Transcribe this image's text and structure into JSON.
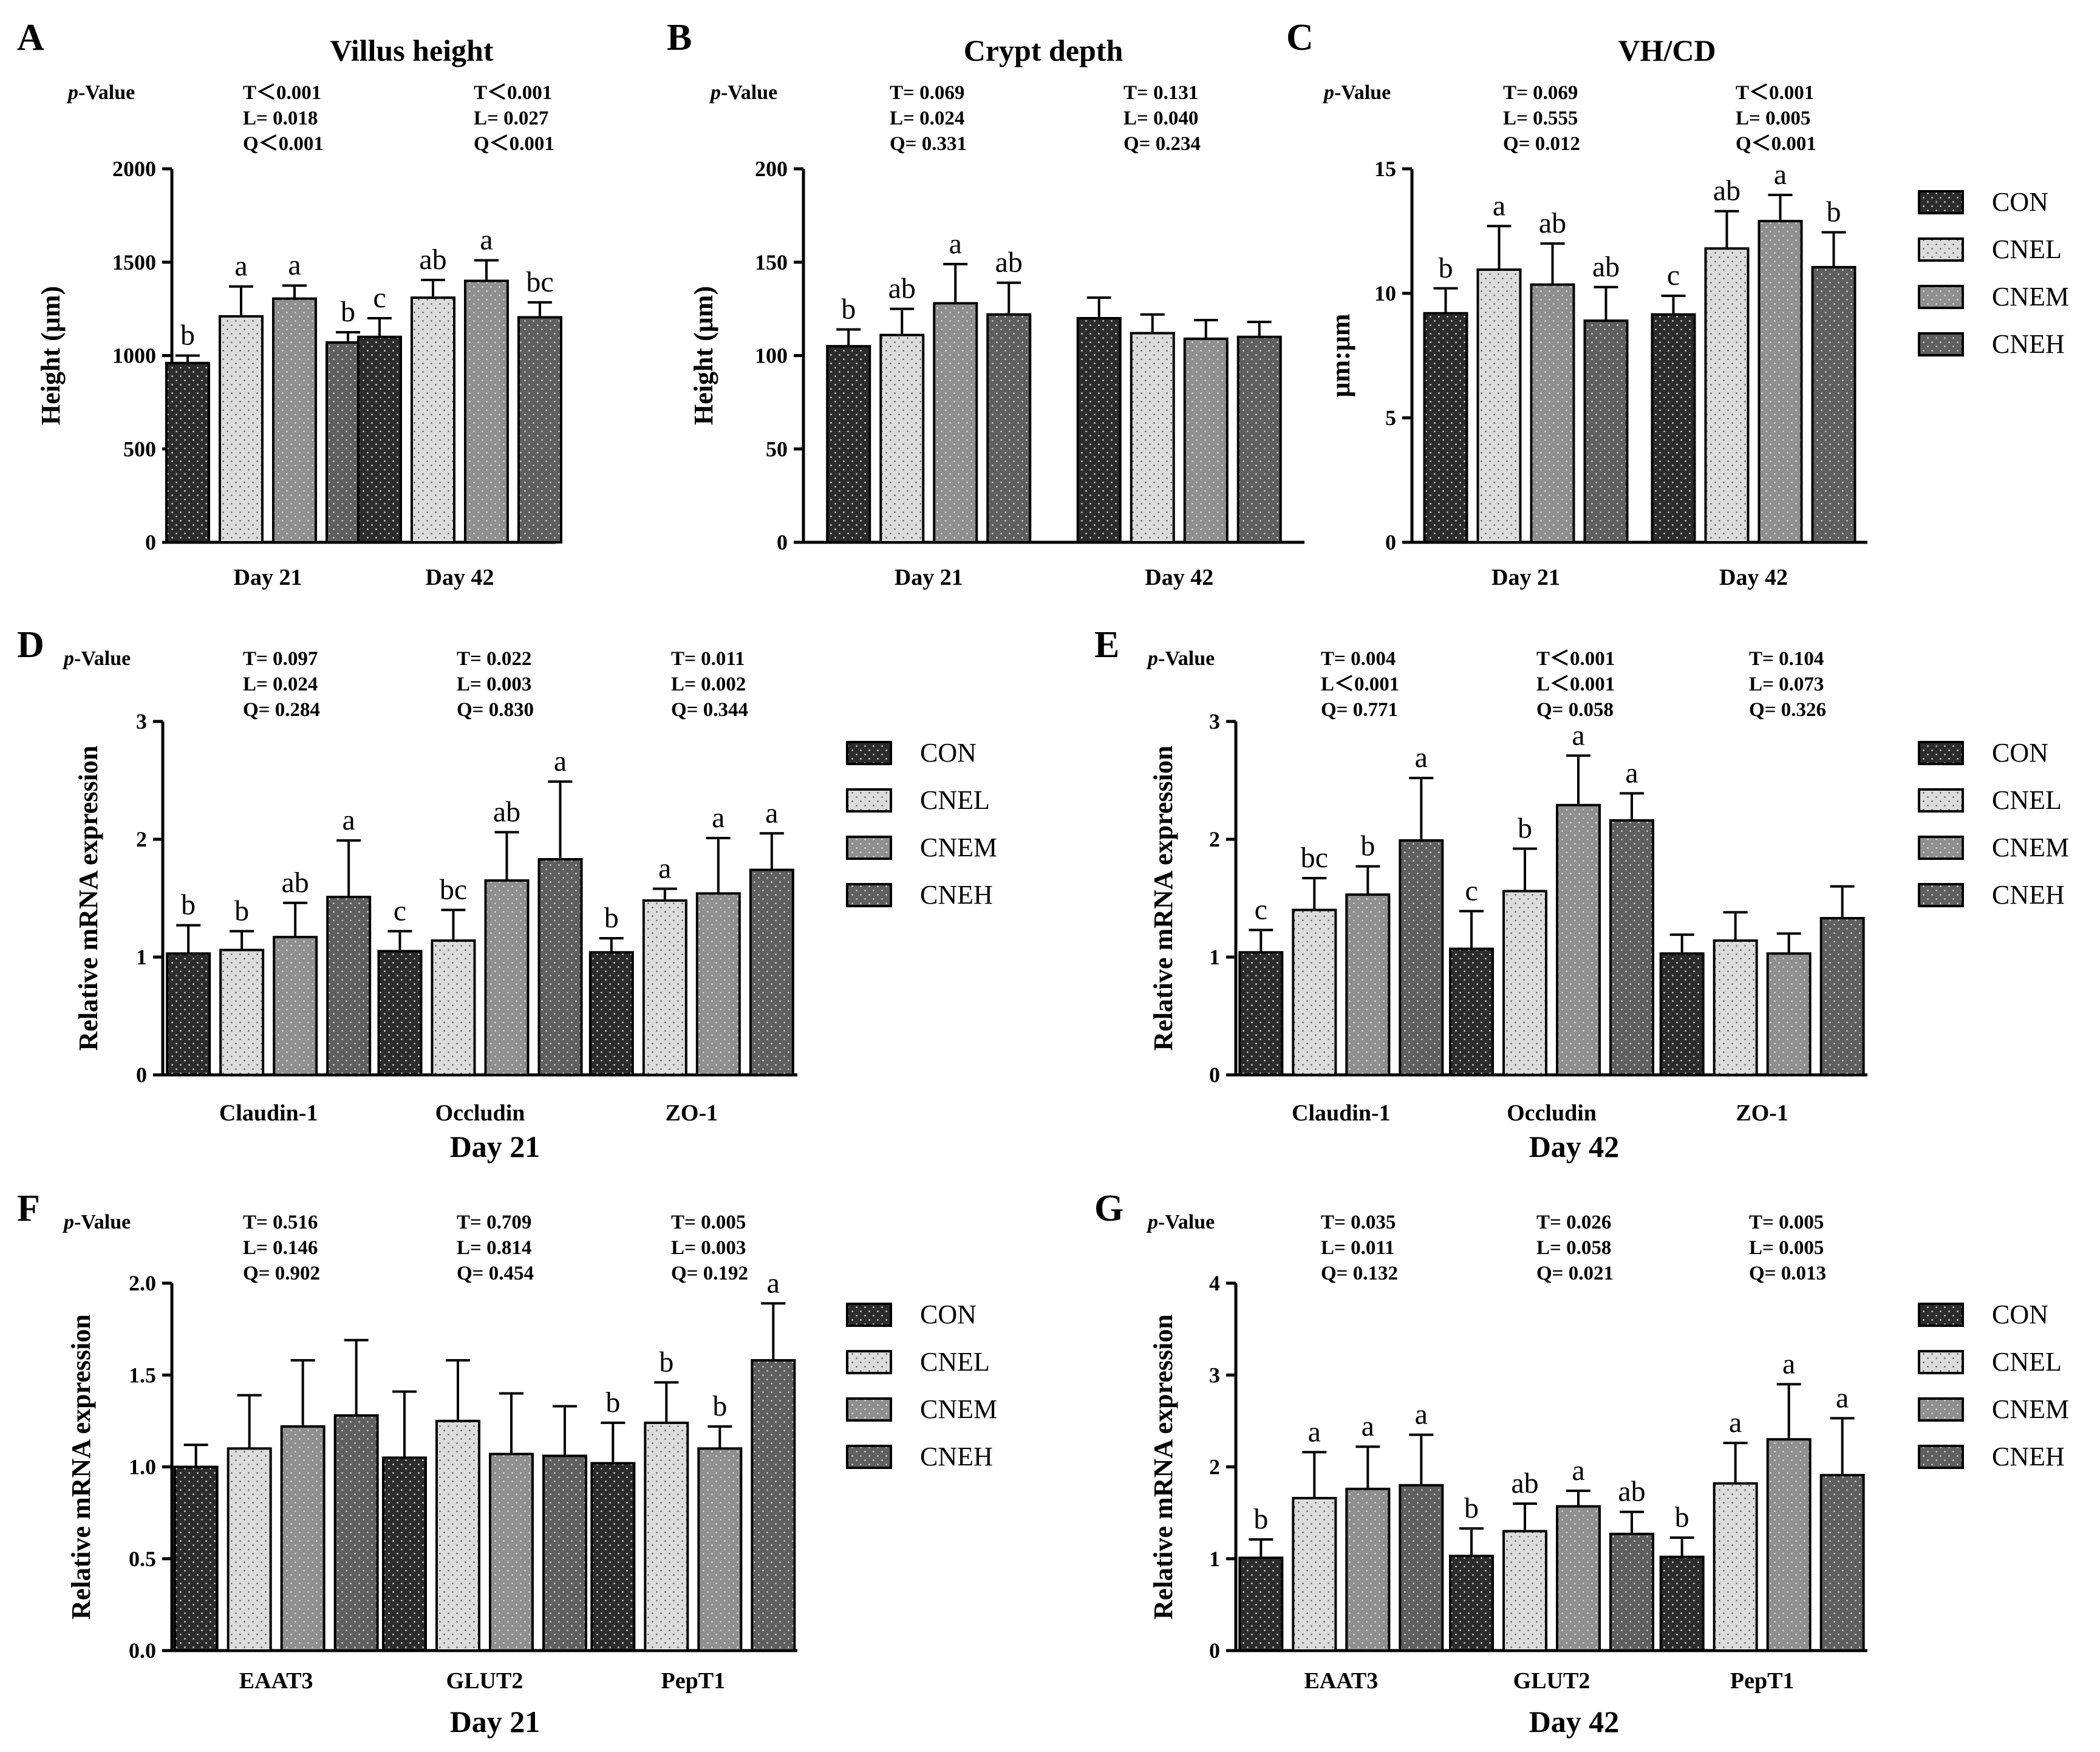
{
  "legend_labels": [
    "CON",
    "CNEL",
    "CNEM",
    "CNEH"
  ],
  "group_colors": [
    "#2c2c2c",
    "#dcdcdc",
    "#8f8f8f",
    "#5f5f5f"
  ],
  "p_value_label": "p-Value",
  "chart_data": [
    {
      "id": "A",
      "type": "bar",
      "title": "Villus height",
      "ylabel": "Height (μm)",
      "ylim": [
        0,
        2000
      ],
      "yticks": [
        "0",
        "500",
        "1000",
        "1500",
        "2000"
      ],
      "categories": [
        "Day 21",
        "Day 42"
      ],
      "series_names": [
        "CON",
        "CNEL",
        "CNEM",
        "CNEH"
      ],
      "values": [
        [
          960,
          1210,
          1305,
          1070
        ],
        [
          1100,
          1310,
          1400,
          1205
        ]
      ],
      "errors": [
        [
          40,
          160,
          70,
          55
        ],
        [
          100,
          95,
          110,
          80
        ]
      ],
      "letters": [
        [
          "b",
          "a",
          "a",
          "b"
        ],
        [
          "c",
          "ab",
          "a",
          "bc"
        ]
      ],
      "pvalues": [
        [
          "T＜0.001",
          "L= 0.018",
          "Q＜0.001"
        ],
        [
          "T＜0.001",
          "L= 0.027",
          "Q＜0.001"
        ]
      ],
      "group_label": "",
      "show_legend": false
    },
    {
      "id": "B",
      "type": "bar",
      "title": "Crypt depth",
      "ylabel": "Height (μm)",
      "ylim": [
        0,
        200
      ],
      "yticks": [
        "0",
        "50",
        "100",
        "150",
        "200"
      ],
      "categories": [
        "Day 21",
        "Day 42"
      ],
      "series_names": [
        "CON",
        "CNEL",
        "CNEM",
        "CNEH"
      ],
      "values": [
        [
          105,
          111,
          128,
          122
        ],
        [
          120,
          112,
          109,
          110
        ]
      ],
      "errors": [
        [
          9,
          14,
          21,
          17
        ],
        [
          11,
          10,
          10,
          8
        ]
      ],
      "letters": [
        [
          "b",
          "ab",
          "a",
          "ab"
        ],
        [
          "",
          "",
          "",
          ""
        ]
      ],
      "pvalues": [
        [
          "T= 0.069",
          "L= 0.024",
          "Q= 0.331"
        ],
        [
          "T= 0.131",
          "L= 0.040",
          "Q= 0.234"
        ]
      ],
      "group_label": "",
      "show_legend": false
    },
    {
      "id": "C",
      "type": "bar",
      "title": "VH/CD",
      "ylabel": "μm:μm",
      "ylim": [
        0,
        15
      ],
      "yticks": [
        "0",
        "5",
        "10",
        "15"
      ],
      "categories": [
        "Day 21",
        "Day 42"
      ],
      "series_names": [
        "CON",
        "CNEL",
        "CNEM",
        "CNEH"
      ],
      "values": [
        [
          9.2,
          10.95,
          10.35,
          8.9
        ],
        [
          9.15,
          11.8,
          12.9,
          11.05
        ]
      ],
      "errors": [
        [
          1.0,
          1.75,
          1.65,
          1.35
        ],
        [
          0.75,
          1.5,
          1.05,
          1.4
        ]
      ],
      "letters": [
        [
          "b",
          "a",
          "ab",
          "ab"
        ],
        [
          "c",
          "ab",
          "a",
          "b"
        ]
      ],
      "pvalues": [
        [
          "T= 0.069",
          "L= 0.555",
          "Q= 0.012"
        ],
        [
          "T＜0.001",
          "L= 0.005",
          "Q＜0.001"
        ]
      ],
      "group_label": "",
      "show_legend": true
    },
    {
      "id": "D",
      "type": "bar",
      "title": "",
      "ylabel": "Relative mRNA expression",
      "ylim": [
        0,
        3
      ],
      "yticks": [
        "0",
        "1",
        "2",
        "3"
      ],
      "categories": [
        "Claudin-1",
        "Occludin",
        "ZO-1"
      ],
      "series_names": [
        "CON",
        "CNEL",
        "CNEM",
        "CNEH"
      ],
      "values": [
        [
          1.03,
          1.06,
          1.17,
          1.51
        ],
        [
          1.05,
          1.14,
          1.65,
          1.83
        ],
        [
          1.04,
          1.48,
          1.54,
          1.74
        ]
      ],
      "errors": [
        [
          0.24,
          0.16,
          0.29,
          0.48
        ],
        [
          0.17,
          0.26,
          0.41,
          0.66
        ],
        [
          0.12,
          0.1,
          0.47,
          0.31
        ]
      ],
      "letters": [
        [
          "b",
          "b",
          "ab",
          "a"
        ],
        [
          "c",
          "bc",
          "ab",
          "a"
        ],
        [
          "b",
          "a",
          "a",
          "a"
        ]
      ],
      "pvalues": [
        [
          "T= 0.097",
          "L= 0.024",
          "Q= 0.284"
        ],
        [
          "T= 0.022",
          "L= 0.003",
          "Q= 0.830"
        ],
        [
          "T= 0.011",
          "L= 0.002",
          "Q= 0.344"
        ]
      ],
      "group_label": "Day 21",
      "show_legend": true
    },
    {
      "id": "E",
      "type": "bar",
      "title": "",
      "ylabel": "Relative mRNA expression",
      "ylim": [
        0,
        3
      ],
      "yticks": [
        "0",
        "1",
        "2",
        "3"
      ],
      "categories": [
        "Claudin-1",
        "Occludin",
        "ZO-1"
      ],
      "series_names": [
        "CON",
        "CNEL",
        "CNEM",
        "CNEH"
      ],
      "values": [
        [
          1.04,
          1.4,
          1.53,
          1.99
        ],
        [
          1.07,
          1.56,
          2.29,
          2.16
        ],
        [
          1.03,
          1.14,
          1.03,
          1.33
        ]
      ],
      "errors": [
        [
          0.19,
          0.27,
          0.24,
          0.53
        ],
        [
          0.32,
          0.36,
          0.42,
          0.23
        ],
        [
          0.16,
          0.24,
          0.17,
          0.27
        ]
      ],
      "letters": [
        [
          "c",
          "bc",
          "b",
          "a"
        ],
        [
          "c",
          "b",
          "a",
          "a"
        ],
        [
          "",
          "",
          "",
          ""
        ]
      ],
      "pvalues": [
        [
          "T= 0.004",
          "L＜0.001",
          "Q= 0.771"
        ],
        [
          "T＜0.001",
          "L＜0.001",
          "Q= 0.058"
        ],
        [
          "T= 0.104",
          "L= 0.073",
          "Q= 0.326"
        ]
      ],
      "group_label": "Day 42",
      "show_legend": true
    },
    {
      "id": "F",
      "type": "bar",
      "title": "",
      "ylabel": "Relative mRNA expression",
      "ylim": [
        0,
        2
      ],
      "yticks": [
        "0.0",
        "0.5",
        "1.0",
        "1.5",
        "2.0"
      ],
      "categories": [
        "EAAT3",
        "GLUT2",
        "PepT1"
      ],
      "series_names": [
        "CON",
        "CNEL",
        "CNEM",
        "CNEH"
      ],
      "values": [
        [
          1.0,
          1.1,
          1.22,
          1.28
        ],
        [
          1.05,
          1.25,
          1.07,
          1.06
        ],
        [
          1.02,
          1.24,
          1.1,
          1.58
        ]
      ],
      "errors": [
        [
          0.12,
          0.29,
          0.36,
          0.41
        ],
        [
          0.36,
          0.33,
          0.33,
          0.27
        ],
        [
          0.22,
          0.22,
          0.12,
          0.31
        ]
      ],
      "letters": [
        [
          "",
          "",
          "",
          ""
        ],
        [
          "",
          "",
          "",
          ""
        ],
        [
          "b",
          "b",
          "b",
          "a"
        ]
      ],
      "pvalues": [
        [
          "T= 0.516",
          "L= 0.146",
          "Q= 0.902"
        ],
        [
          "T= 0.709",
          "L= 0.814",
          "Q= 0.454"
        ],
        [
          "T= 0.005",
          "L= 0.003",
          "Q= 0.192"
        ]
      ],
      "group_label": "Day 21",
      "show_legend": true
    },
    {
      "id": "G",
      "type": "bar",
      "title": "",
      "ylabel": "Relative mRNA expression",
      "ylim": [
        0,
        4
      ],
      "yticks": [
        "0",
        "1",
        "2",
        "3",
        "4"
      ],
      "categories": [
        "EAAT3",
        "GLUT2",
        "PepT1"
      ],
      "series_names": [
        "CON",
        "CNEL",
        "CNEM",
        "CNEH"
      ],
      "values": [
        [
          1.01,
          1.66,
          1.76,
          1.8
        ],
        [
          1.03,
          1.3,
          1.57,
          1.27
        ],
        [
          1.02,
          1.82,
          2.3,
          1.91
        ]
      ],
      "errors": [
        [
          0.2,
          0.5,
          0.46,
          0.55
        ],
        [
          0.3,
          0.3,
          0.17,
          0.24
        ],
        [
          0.21,
          0.44,
          0.6,
          0.62
        ]
      ],
      "letters": [
        [
          "b",
          "a",
          "a",
          "a"
        ],
        [
          "b",
          "ab",
          "a",
          "ab"
        ],
        [
          "b",
          "a",
          "a",
          "a"
        ]
      ],
      "pvalues": [
        [
          "T= 0.035",
          "L= 0.011",
          "Q= 0.132"
        ],
        [
          "T= 0.026",
          "L= 0.058",
          "Q= 0.021"
        ],
        [
          "T= 0.005",
          "L= 0.005",
          "Q= 0.013"
        ]
      ],
      "group_label": "Day 42",
      "show_legend": true
    }
  ]
}
